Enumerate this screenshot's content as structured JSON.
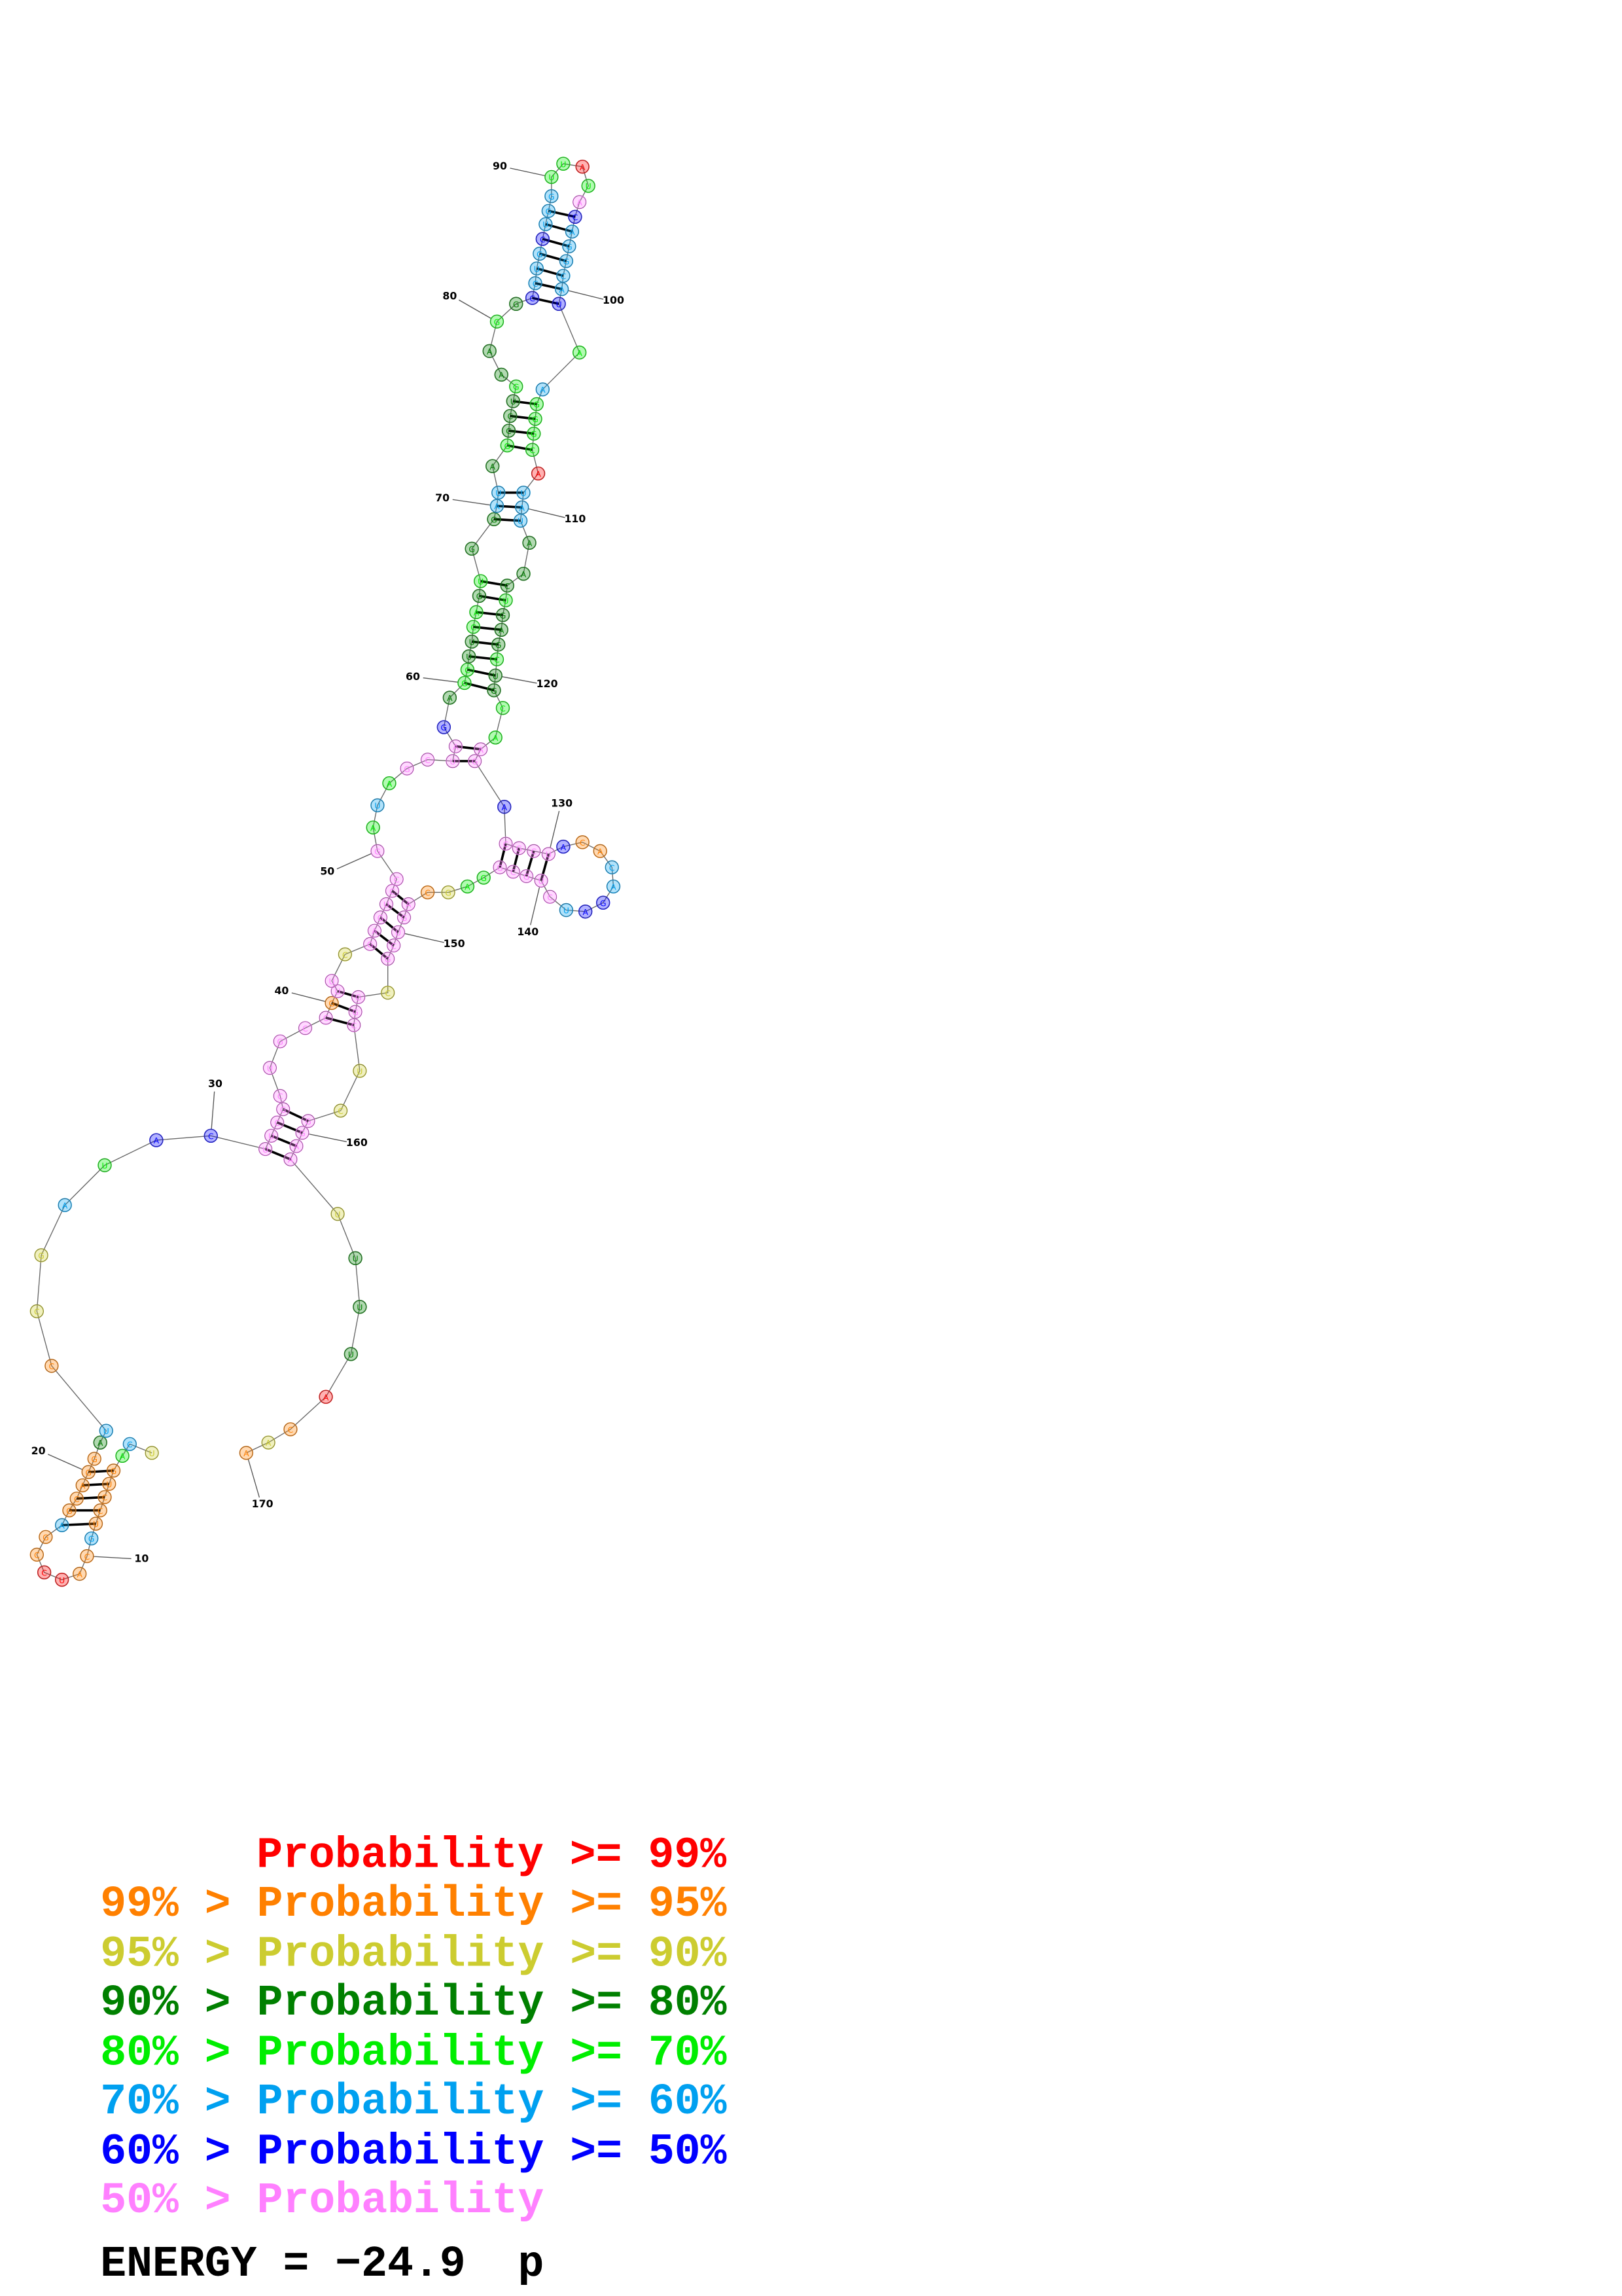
{
  "structure": {
    "sequence": "UCAGUCCUGCAUCCGAGCAGGAUCCGAUACUUCGCUGCCGUUCGAGUCCGAUAGCUAGAGCUUCAGUGGAUAGCCUGAAGGCCUGCUGGUUAUACAGGCAUAAGGGCAUAUAACUGAGCUGCAAGACGCUACACAGAUCUGCGGAGCAGUCGCGGCUCGGAAUUUUACAA",
    "probability_class": [
      2,
      5,
      4,
      1,
      1,
      1,
      1,
      1,
      5,
      1,
      1,
      0,
      0,
      1,
      1,
      5,
      1,
      1,
      1,
      1,
      1,
      3,
      5,
      1,
      2,
      2,
      5,
      4,
      6,
      6,
      7,
      7,
      7,
      7,
      7,
      7,
      7,
      7,
      7,
      1,
      7,
      7,
      2,
      7,
      7,
      7,
      7,
      7,
      7,
      7,
      4,
      5,
      4,
      7,
      7,
      7,
      7,
      6,
      3,
      4,
      4,
      3,
      3,
      4,
      4,
      3,
      4,
      3,
      3,
      5,
      5,
      3,
      4,
      3,
      3,
      3,
      4,
      3,
      3,
      4,
      3,
      6,
      5,
      5,
      5,
      6,
      5,
      5,
      5,
      4,
      4,
      0,
      4,
      7,
      6,
      5,
      5,
      5,
      5,
      5,
      6,
      4,
      5,
      4,
      4,
      4,
      4,
      0,
      5,
      5,
      5,
      3,
      3,
      3,
      4,
      3,
      3,
      3,
      4,
      3,
      3,
      4,
      4,
      7,
      7,
      6,
      7,
      7,
      7,
      7,
      6,
      1,
      1,
      5,
      5,
      6,
      6,
      5,
      7,
      7,
      7,
      7,
      7,
      4,
      4,
      2,
      1,
      7,
      7,
      7,
      7,
      7,
      2,
      7,
      7,
      7,
      2,
      2,
      7,
      7,
      7,
      7,
      2,
      3,
      3,
      3,
      0,
      1,
      2,
      1
    ],
    "position_labels": [
      10,
      20,
      30,
      40,
      50,
      60,
      70,
      80,
      90,
      100,
      110,
      120,
      130,
      140,
      150,
      160,
      170
    ]
  },
  "legend": [
    {
      "label": "Probability >= 99%",
      "color": "#ff0000"
    },
    {
      "label": "99% > Probability >= 95%",
      "color": "#ff8000"
    },
    {
      "label": "95% > Probability >= 90%",
      "color": "#cccc30"
    },
    {
      "label": "90% > Probability >= 80%",
      "color": "#008000"
    },
    {
      "label": "80% > Probability >= 70%",
      "color": "#00ee00"
    },
    {
      "label": "70% > Probability >= 60%",
      "color": "#00a0f0"
    },
    {
      "label": "60% > Probability >= 50%",
      "color": "#0000ff"
    },
    {
      "label": "50% > Probability",
      "color": "#ff80ff"
    }
  ],
  "energy": "ENERGY = −24.9  p"
}
